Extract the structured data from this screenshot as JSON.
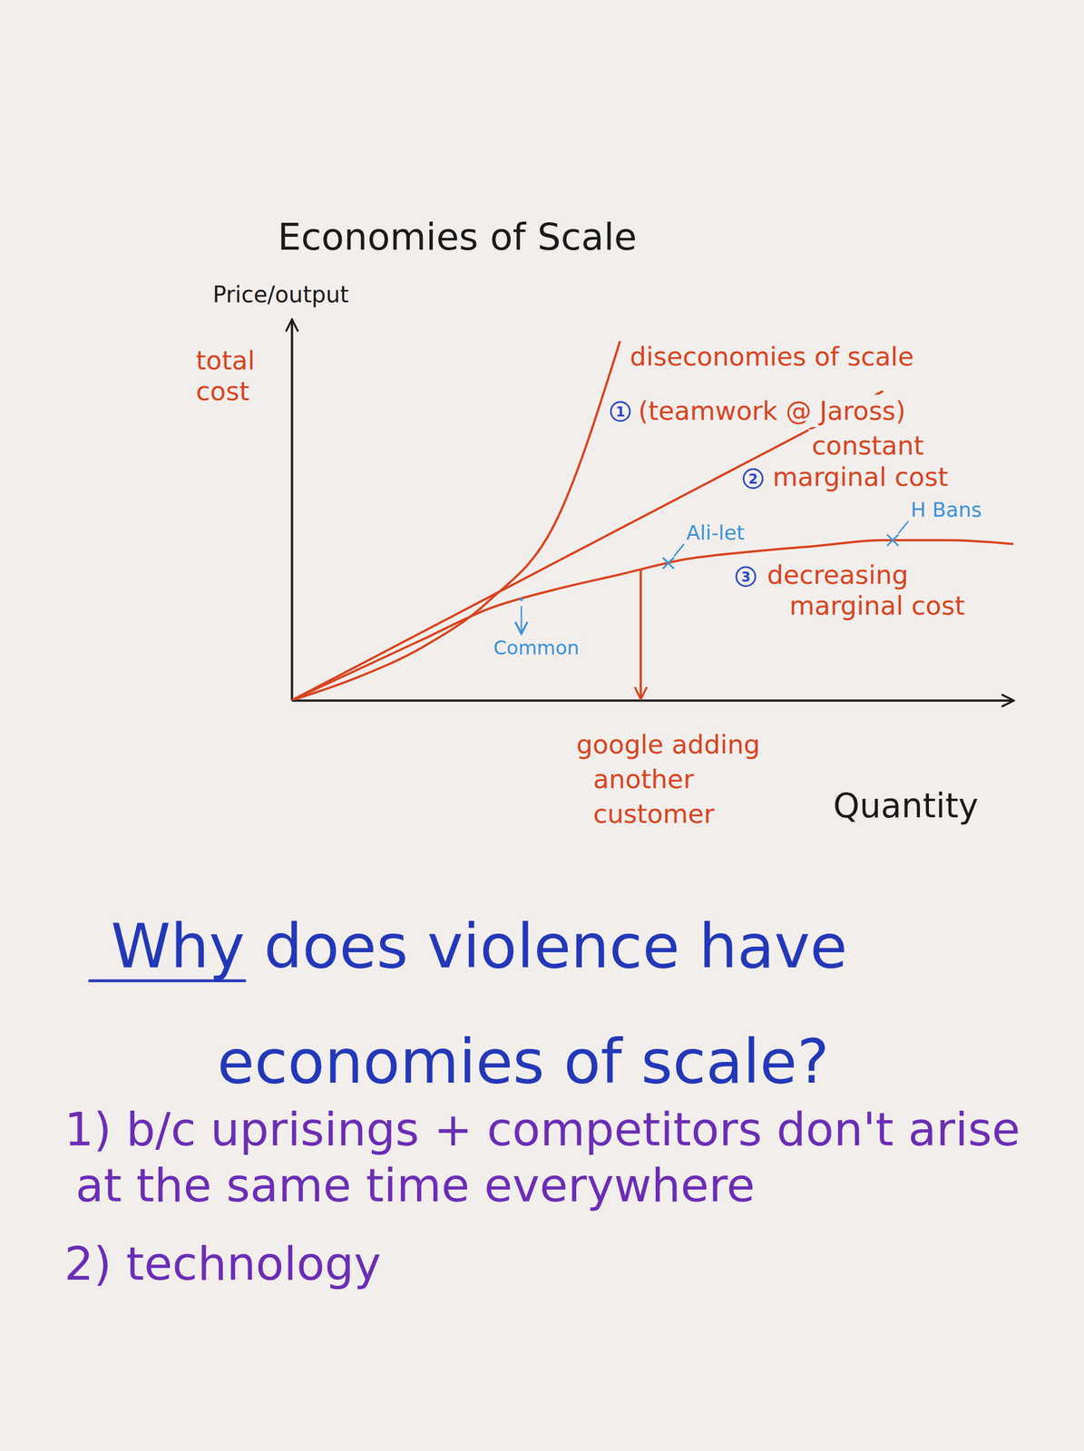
{
  "chart_data": {
    "type": "line",
    "title": "Economies of Scale",
    "y_label": "Price/output",
    "y_sublabel": "total cost",
    "x_label": "Quantity",
    "x": [
      0,
      1,
      2,
      3,
      4,
      5,
      6,
      7,
      8,
      9,
      10,
      11
    ],
    "xlim": [
      0,
      11
    ],
    "ylim": [
      0,
      10
    ],
    "xticks": [],
    "yticks": [],
    "tick_labels": false,
    "grid": false,
    "series": [
      {
        "name": "diseconomies of scale",
        "detail": "(teamwork @ Jaross)",
        "number": "1",
        "color": "#d9431e",
        "values": [
          0,
          0.6,
          1.4,
          2.6,
          4.6,
          9.4,
          null,
          null,
          null,
          null,
          null,
          null
        ]
      },
      {
        "name": "constant marginal cost",
        "number": "2",
        "color": "#d9431e",
        "values": [
          0,
          0.9,
          1.8,
          2.7,
          3.6,
          4.5,
          5.4,
          6.3,
          7.2,
          8.1,
          null,
          null
        ]
      },
      {
        "name": "decreasing marginal cost",
        "number": "3",
        "color": "#d9431e",
        "values": [
          0,
          0.8,
          1.6,
          2.4,
          2.9,
          3.3,
          3.7,
          3.9,
          4.05,
          4.2,
          4.2,
          4.1
        ]
      }
    ],
    "annotations": [
      {
        "text": "Common",
        "x": 3.5,
        "y": 2.65,
        "color": "#3a92d8",
        "marker": "arrow"
      },
      {
        "text": "Ali-let",
        "x": 5.74,
        "y": 3.6,
        "color": "#3a92d8",
        "marker": "x"
      },
      {
        "text": "H Bans",
        "x": 9.16,
        "y": 4.2,
        "color": "#3a92d8",
        "marker": "x"
      },
      {
        "text": "google adding another customer",
        "x": 5.32,
        "y": 3.43,
        "color": "#d9431e",
        "marker": "drop_line"
      }
    ]
  },
  "question": {
    "title": "Why does violence have economies of scale?",
    "items": [
      "1) b/c uprisings + competitors don't arise at the same time everywhere",
      "2) technology"
    ]
  }
}
